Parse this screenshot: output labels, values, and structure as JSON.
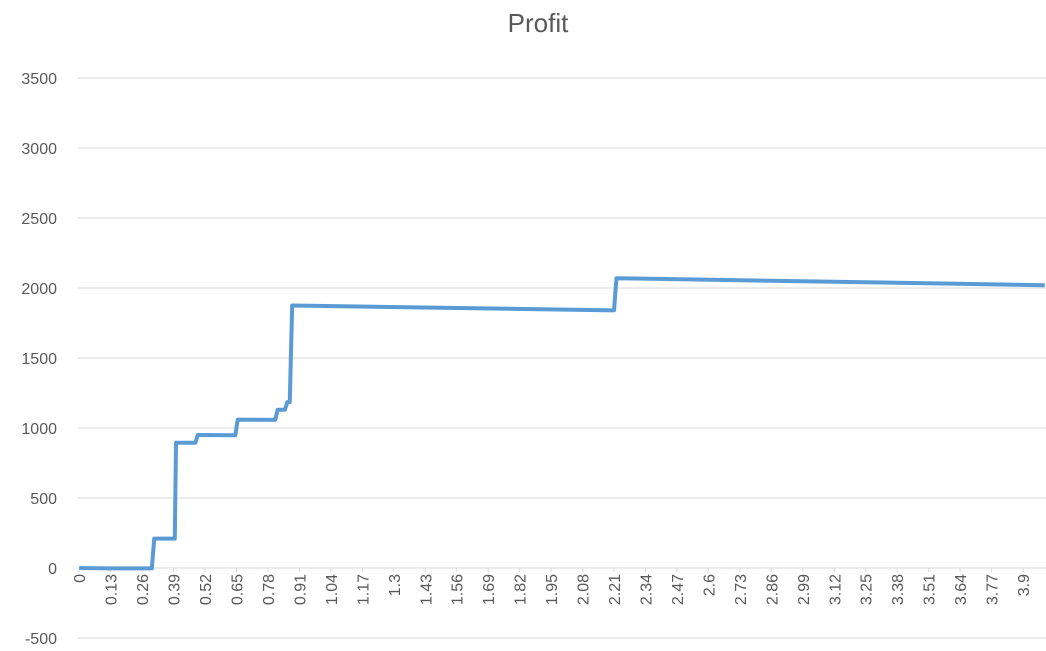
{
  "chart_data": {
    "type": "line",
    "title": "Profit",
    "x": [
      0,
      0.12,
      0.3,
      0.31,
      0.395,
      0.4,
      0.48,
      0.49,
      0.645,
      0.655,
      0.81,
      0.82,
      0.85,
      0.86,
      0.87,
      0.88,
      2.21,
      2.22,
      3.99
    ],
    "series": [
      {
        "name": "Profit",
        "color": "#5b9bd5",
        "values": [
          0,
          -3,
          -3,
          210,
          210,
          895,
          895,
          950,
          948,
          1060,
          1058,
          1130,
          1130,
          1185,
          1185,
          1875,
          1840,
          2070,
          2020
        ]
      }
    ],
    "xlim": [
      -0.005,
      3.995
    ],
    "xticks": [
      0,
      0.13,
      0.26,
      0.39,
      0.52,
      0.65,
      0.78,
      0.91,
      1.04,
      1.17,
      1.3,
      1.43,
      1.56,
      1.69,
      1.82,
      1.95,
      2.08,
      2.21,
      2.34,
      2.47,
      2.6,
      2.73,
      2.86,
      2.99,
      3.12,
      3.25,
      3.38,
      3.51,
      3.64,
      3.77,
      3.9
    ],
    "ylim": [
      -500,
      3500
    ],
    "yticks": [
      -500,
      0,
      500,
      1000,
      1500,
      2000,
      2500,
      3000,
      3500
    ],
    "grid": true
  }
}
